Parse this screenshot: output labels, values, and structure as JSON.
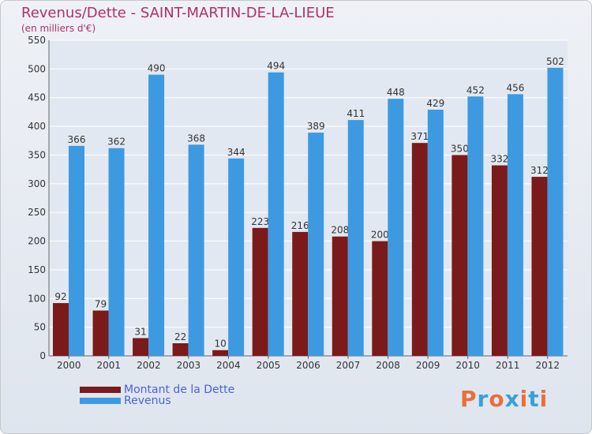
{
  "header": {
    "title": "Revenus/Dette - SAINT-MARTIN-DE-LA-LIEUE",
    "subtitle": "(en milliers d'€)"
  },
  "legend": [
    {
      "label": "Montant de la Dette",
      "color": "#7b1a1a"
    },
    {
      "label": "Revenus",
      "color": "#3d9ae0"
    }
  ],
  "logo": {
    "text": "Proxiti",
    "colors": [
      "#e8703a",
      "#3aa0d8",
      "#e8703a",
      "#3aa0d8",
      "#e8703a",
      "#3aa0d8",
      "#e8703a"
    ]
  },
  "chart_data": {
    "type": "bar",
    "categories": [
      "2000",
      "2001",
      "2002",
      "2003",
      "2004",
      "2005",
      "2006",
      "2007",
      "2008",
      "2009",
      "2010",
      "2011",
      "2012"
    ],
    "series": [
      {
        "name": "Montant de la Dette",
        "color": "#7b1a1a",
        "values": [
          92,
          79,
          31,
          22,
          10,
          223,
          216,
          208,
          200,
          371,
          350,
          332,
          312
        ]
      },
      {
        "name": "Revenus",
        "color": "#3d9ae0",
        "values": [
          366,
          362,
          490,
          368,
          344,
          494,
          389,
          411,
          448,
          429,
          452,
          456,
          502
        ]
      }
    ],
    "ylim": [
      0,
      550
    ],
    "yticks": [
      0,
      50,
      100,
      150,
      200,
      250,
      300,
      350,
      400,
      450,
      500,
      550
    ],
    "grid": true,
    "legend_position": "bottom-left"
  }
}
